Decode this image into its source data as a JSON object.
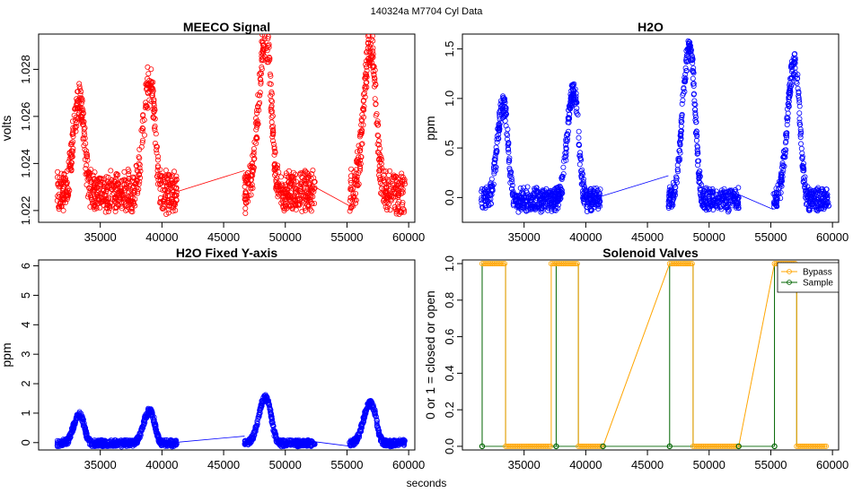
{
  "page": {
    "suptitle": "140324a    M7704    Cyl Data",
    "xlabel": "seconds"
  },
  "chart_data": [
    {
      "id": "meeco",
      "type": "scatter",
      "title": "MEECO Signal",
      "xlabel": "",
      "ylabel": "volts",
      "xlim": [
        30000,
        60500
      ],
      "ylim": [
        1.0215,
        1.0295
      ],
      "xticks": [
        35000,
        40000,
        45000,
        50000,
        55000,
        60000
      ],
      "xtick_labels": [
        "35000",
        "40000",
        "45000",
        "50000",
        "55000",
        "60000"
      ],
      "yticks": [
        1.022,
        1.024,
        1.026,
        1.028
      ],
      "ytick_labels": [
        "1.022",
        "1.024",
        "1.026",
        "1.028"
      ],
      "color": "#ff0000",
      "base": 1.0228,
      "scale": 0.004,
      "gaps": [
        [
          41200,
          46700,
          1.0228,
          1.0237
        ],
        [
          52400,
          55200,
          1.023,
          1.0222
        ]
      ],
      "segments": [
        {
          "start": 31500,
          "end": 41200,
          "peaks": [
            {
              "x": 33300,
              "amp": 0.95,
              "w": 620
            },
            {
              "x": 39000,
              "amp": 1.1,
              "w": 660
            }
          ]
        },
        {
          "start": 46700,
          "end": 52400,
          "peaks": [
            {
              "x": 48400,
              "amp": 1.55,
              "w": 720
            }
          ]
        },
        {
          "start": 55200,
          "end": 59700,
          "peaks": [
            {
              "x": 56900,
              "amp": 1.45,
              "w": 720
            }
          ]
        }
      ],
      "noise": 0.18
    },
    {
      "id": "h2o",
      "type": "scatter",
      "title": "H2O",
      "xlabel": "",
      "ylabel": "ppm",
      "xlim": [
        30000,
        60500
      ],
      "ylim": [
        -0.25,
        1.65
      ],
      "xticks": [
        35000,
        40000,
        45000,
        50000,
        55000,
        60000
      ],
      "xtick_labels": [
        "35000",
        "40000",
        "45000",
        "50000",
        "55000",
        "60000"
      ],
      "yticks": [
        0.0,
        0.5,
        1.0,
        1.5
      ],
      "ytick_labels": [
        "0.0",
        "0.5",
        "1.0",
        "1.5"
      ],
      "color": "#0000ff",
      "base": -0.02,
      "scale": 1.0,
      "gaps": [
        [
          41200,
          46700,
          0.01,
          0.22
        ],
        [
          52400,
          55200,
          0.03,
          -0.12
        ]
      ],
      "segments": [
        {
          "start": 31500,
          "end": 41200,
          "peaks": [
            {
              "x": 33300,
              "amp": 0.95,
              "w": 620
            },
            {
              "x": 39000,
              "amp": 1.08,
              "w": 660
            }
          ]
        },
        {
          "start": 46700,
          "end": 52400,
          "peaks": [
            {
              "x": 48400,
              "amp": 1.52,
              "w": 720
            }
          ]
        },
        {
          "start": 55200,
          "end": 59700,
          "peaks": [
            {
              "x": 56900,
              "amp": 1.35,
              "w": 720
            }
          ]
        }
      ],
      "noise": 0.1
    },
    {
      "id": "h2o_fixed",
      "type": "scatter",
      "title": "H2O Fixed Y-axis",
      "xlabel": "",
      "ylabel": "ppm",
      "xlim": [
        30000,
        60500
      ],
      "ylim": [
        -0.25,
        6.2
      ],
      "xticks": [
        35000,
        40000,
        45000,
        50000,
        55000,
        60000
      ],
      "xtick_labels": [
        "35000",
        "40000",
        "45000",
        "50000",
        "55000",
        "60000"
      ],
      "yticks": [
        0,
        1,
        2,
        3,
        4,
        5,
        6
      ],
      "ytick_labels": [
        "0",
        "1",
        "2",
        "3",
        "4",
        "5",
        "6"
      ],
      "color": "#0000ff",
      "base": -0.02,
      "scale": 1.0,
      "gaps": [
        [
          41200,
          46700,
          0.01,
          0.22
        ],
        [
          52400,
          55200,
          0.03,
          -0.12
        ]
      ],
      "segments": [
        {
          "start": 31500,
          "end": 41200,
          "peaks": [
            {
              "x": 33300,
              "amp": 0.95,
              "w": 620
            },
            {
              "x": 39000,
              "amp": 1.08,
              "w": 660
            }
          ]
        },
        {
          "start": 46700,
          "end": 52400,
          "peaks": [
            {
              "x": 48400,
              "amp": 1.52,
              "w": 720
            }
          ]
        },
        {
          "start": 55200,
          "end": 59700,
          "peaks": [
            {
              "x": 56900,
              "amp": 1.35,
              "w": 720
            }
          ]
        }
      ],
      "noise": 0.1
    },
    {
      "id": "valves",
      "type": "line",
      "title": "Solenoid Valves",
      "xlabel": "",
      "ylabel": "0 or 1 = closed or open",
      "xlim": [
        30000,
        60500
      ],
      "ylim": [
        -0.02,
        1.02
      ],
      "xticks": [
        35000,
        40000,
        45000,
        50000,
        55000,
        60000
      ],
      "xtick_labels": [
        "35000",
        "40000",
        "45000",
        "50000",
        "55000",
        "60000"
      ],
      "yticks": [
        0.0,
        0.2,
        0.4,
        0.6,
        0.8,
        1.0
      ],
      "ytick_labels": [
        "0.0",
        "0.2",
        "0.4",
        "0.6",
        "0.8",
        "1.0"
      ],
      "legend": [
        {
          "name": "Bypass",
          "color": "#ffa500"
        },
        {
          "name": "Sample",
          "color": "#006400"
        }
      ],
      "bypass": {
        "color": "#ffa500",
        "runs": [
          [
            31600,
            33500,
            1
          ],
          [
            33500,
            37200,
            0
          ],
          [
            37200,
            39400,
            1
          ],
          [
            39400,
            41400,
            0
          ],
          [
            46800,
            48700,
            1
          ],
          [
            48700,
            52400,
            0
          ],
          [
            55300,
            57100,
            1
          ],
          [
            57100,
            59600,
            0
          ]
        ],
        "links": [
          [
            41400,
            0,
            46800,
            1
          ],
          [
            52400,
            0,
            55300,
            1
          ]
        ]
      },
      "sample": {
        "color": "#006400",
        "points": [
          [
            31600,
            0
          ],
          [
            37600,
            0
          ],
          [
            41400,
            0
          ],
          [
            46800,
            0
          ],
          [
            52400,
            0
          ],
          [
            55300,
            0
          ]
        ],
        "verticals": [
          31600,
          33500,
          37600,
          39400,
          46800,
          48700,
          55300,
          57100
        ]
      }
    }
  ]
}
